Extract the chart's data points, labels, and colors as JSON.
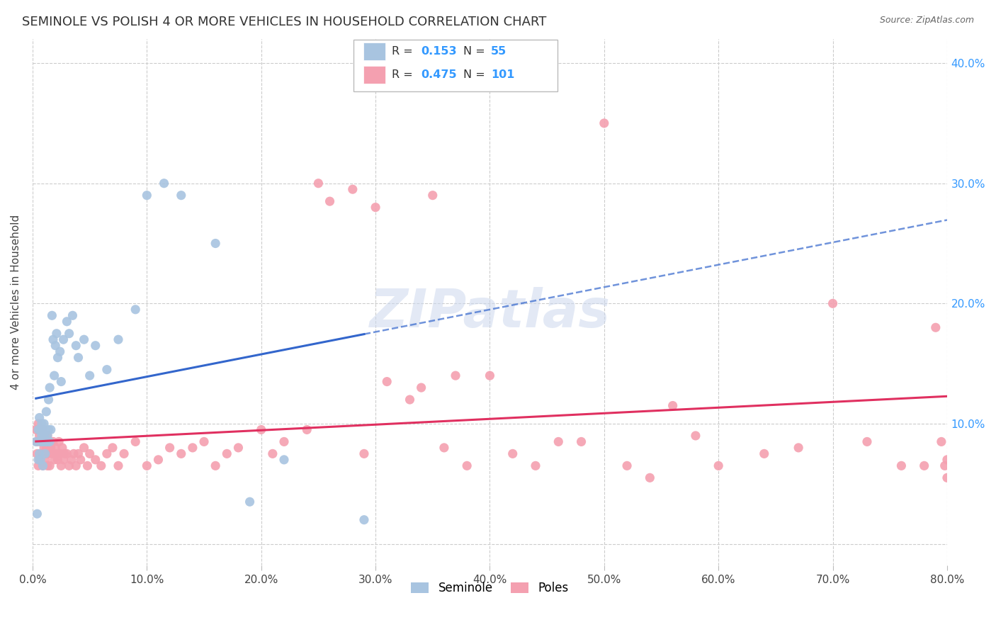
{
  "title": "SEMINOLE VS POLISH 4 OR MORE VEHICLES IN HOUSEHOLD CORRELATION CHART",
  "source": "Source: ZipAtlas.com",
  "ylabel": "4 or more Vehicles in Household",
  "watermark": "ZIPatlas",
  "legend_seminole_R": "0.153",
  "legend_seminole_N": "55",
  "legend_poles_R": "0.475",
  "legend_poles_N": "101",
  "xlim": [
    0.0,
    0.8
  ],
  "ylim": [
    -0.018,
    0.42
  ],
  "xticks": [
    0.0,
    0.1,
    0.2,
    0.3,
    0.4,
    0.5,
    0.6,
    0.7,
    0.8
  ],
  "xticklabels": [
    "0.0%",
    "10.0%",
    "20.0%",
    "30.0%",
    "40.0%",
    "50.0%",
    "60.0%",
    "70.0%",
    "80.0%"
  ],
  "yticks": [
    0.0,
    0.1,
    0.2,
    0.3,
    0.4
  ],
  "yticklabels_right": [
    "",
    "10.0%",
    "20.0%",
    "30.0%",
    "40.0%"
  ],
  "seminole_color": "#a8c4e0",
  "poles_color": "#f4a0b0",
  "seminole_line_color": "#3366cc",
  "poles_line_color": "#e03060",
  "background_color": "#ffffff",
  "grid_color": "#cccccc",
  "title_fontsize": 13,
  "axis_fontsize": 11,
  "tick_fontsize": 11,
  "seminole_x": [
    0.003,
    0.004,
    0.005,
    0.005,
    0.006,
    0.006,
    0.007,
    0.007,
    0.007,
    0.008,
    0.008,
    0.008,
    0.009,
    0.009,
    0.01,
    0.01,
    0.01,
    0.011,
    0.011,
    0.012,
    0.012,
    0.013,
    0.013,
    0.014,
    0.014,
    0.015,
    0.015,
    0.016,
    0.017,
    0.018,
    0.019,
    0.02,
    0.021,
    0.022,
    0.024,
    0.025,
    0.027,
    0.03,
    0.032,
    0.035,
    0.038,
    0.04,
    0.045,
    0.05,
    0.055,
    0.065,
    0.075,
    0.09,
    0.1,
    0.115,
    0.13,
    0.16,
    0.19,
    0.22,
    0.29
  ],
  "seminole_y": [
    0.085,
    0.025,
    0.095,
    0.07,
    0.105,
    0.075,
    0.085,
    0.095,
    0.07,
    0.085,
    0.09,
    0.1,
    0.085,
    0.065,
    0.09,
    0.1,
    0.085,
    0.095,
    0.075,
    0.085,
    0.11,
    0.085,
    0.09,
    0.095,
    0.12,
    0.13,
    0.085,
    0.095,
    0.19,
    0.17,
    0.14,
    0.165,
    0.175,
    0.155,
    0.16,
    0.135,
    0.17,
    0.185,
    0.175,
    0.19,
    0.165,
    0.155,
    0.17,
    0.14,
    0.165,
    0.145,
    0.17,
    0.195,
    0.29,
    0.3,
    0.29,
    0.25,
    0.035,
    0.07,
    0.02
  ],
  "poles_x": [
    0.003,
    0.004,
    0.004,
    0.005,
    0.005,
    0.006,
    0.006,
    0.007,
    0.007,
    0.008,
    0.008,
    0.009,
    0.009,
    0.01,
    0.01,
    0.011,
    0.011,
    0.012,
    0.012,
    0.013,
    0.013,
    0.014,
    0.015,
    0.015,
    0.016,
    0.017,
    0.018,
    0.019,
    0.02,
    0.021,
    0.022,
    0.023,
    0.024,
    0.025,
    0.026,
    0.027,
    0.028,
    0.03,
    0.032,
    0.034,
    0.036,
    0.038,
    0.04,
    0.042,
    0.045,
    0.048,
    0.05,
    0.055,
    0.06,
    0.065,
    0.07,
    0.075,
    0.08,
    0.09,
    0.1,
    0.11,
    0.12,
    0.13,
    0.14,
    0.15,
    0.16,
    0.17,
    0.18,
    0.2,
    0.21,
    0.22,
    0.24,
    0.25,
    0.26,
    0.28,
    0.29,
    0.3,
    0.31,
    0.33,
    0.34,
    0.35,
    0.36,
    0.37,
    0.38,
    0.4,
    0.42,
    0.44,
    0.46,
    0.48,
    0.5,
    0.52,
    0.54,
    0.56,
    0.58,
    0.6,
    0.64,
    0.67,
    0.7,
    0.73,
    0.76,
    0.78,
    0.79,
    0.795,
    0.798,
    0.8,
    0.8
  ],
  "poles_y": [
    0.095,
    0.085,
    0.075,
    0.1,
    0.065,
    0.09,
    0.07,
    0.085,
    0.095,
    0.075,
    0.085,
    0.065,
    0.095,
    0.08,
    0.09,
    0.07,
    0.085,
    0.08,
    0.075,
    0.065,
    0.09,
    0.075,
    0.085,
    0.065,
    0.08,
    0.075,
    0.085,
    0.07,
    0.08,
    0.075,
    0.07,
    0.085,
    0.075,
    0.065,
    0.08,
    0.07,
    0.075,
    0.075,
    0.065,
    0.07,
    0.075,
    0.065,
    0.075,
    0.07,
    0.08,
    0.065,
    0.075,
    0.07,
    0.065,
    0.075,
    0.08,
    0.065,
    0.075,
    0.085,
    0.065,
    0.07,
    0.08,
    0.075,
    0.08,
    0.085,
    0.065,
    0.075,
    0.08,
    0.095,
    0.075,
    0.085,
    0.095,
    0.3,
    0.285,
    0.295,
    0.075,
    0.28,
    0.135,
    0.12,
    0.13,
    0.29,
    0.08,
    0.14,
    0.065,
    0.14,
    0.075,
    0.065,
    0.085,
    0.085,
    0.35,
    0.065,
    0.055,
    0.115,
    0.09,
    0.065,
    0.075,
    0.08,
    0.2,
    0.085,
    0.065,
    0.065,
    0.18,
    0.085,
    0.065,
    0.07,
    0.055
  ]
}
